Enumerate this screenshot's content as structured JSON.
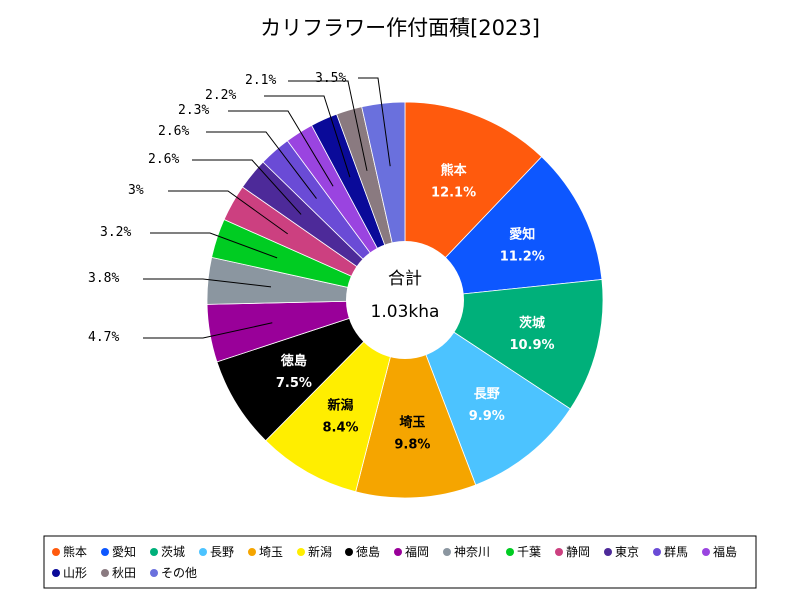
{
  "chart_data": {
    "type": "pie",
    "title": "カリフラワー作付面積[2023]",
    "center_label": "合計",
    "center_value": "1.03kha",
    "legend_placement": "bottom",
    "slices": [
      {
        "name": "熊本",
        "value": 12.1,
        "label": "12.1%",
        "color": "#ff5a0d"
      },
      {
        "name": "愛知",
        "value": 11.2,
        "label": "11.2%",
        "color": "#0d57ff"
      },
      {
        "name": "茨城",
        "value": 10.9,
        "label": "10.9%",
        "color": "#00b07a"
      },
      {
        "name": "長野",
        "value": 9.9,
        "label": "9.9%",
        "color": "#4cc3ff"
      },
      {
        "name": "埼玉",
        "value": 9.8,
        "label": "9.8%",
        "color": "#f5a500"
      },
      {
        "name": "新潟",
        "value": 8.4,
        "label": "8.4%",
        "color": "#ffee00"
      },
      {
        "name": "徳島",
        "value": 7.5,
        "label": "7.5%",
        "color": "#000000"
      },
      {
        "name": "福岡",
        "value": 4.7,
        "label": "4.7%",
        "color": "#990099"
      },
      {
        "name": "神奈川",
        "value": 3.8,
        "label": "3.8%",
        "color": "#8b96a0"
      },
      {
        "name": "千葉",
        "value": 3.2,
        "label": "3.2%",
        "color": "#00cc22"
      },
      {
        "name": "静岡",
        "value": 3.0,
        "label": "3%",
        "color": "#cc4080"
      },
      {
        "name": "東京",
        "value": 2.6,
        "label": "2.6%",
        "color": "#4d2a99"
      },
      {
        "name": "群馬",
        "value": 2.6,
        "label": "2.6%",
        "color": "#6a4bd6"
      },
      {
        "name": "福島",
        "value": 2.3,
        "label": "2.3%",
        "color": "#9a44e0"
      },
      {
        "name": "山形",
        "value": 2.2,
        "label": "2.2%",
        "color": "#0a0a99"
      },
      {
        "name": "秋田",
        "value": 2.1,
        "label": "2.1%",
        "color": "#8a7a80"
      },
      {
        "name": "その他",
        "value": 3.5,
        "label": "3.5%",
        "color": "#6a70dd"
      }
    ]
  }
}
